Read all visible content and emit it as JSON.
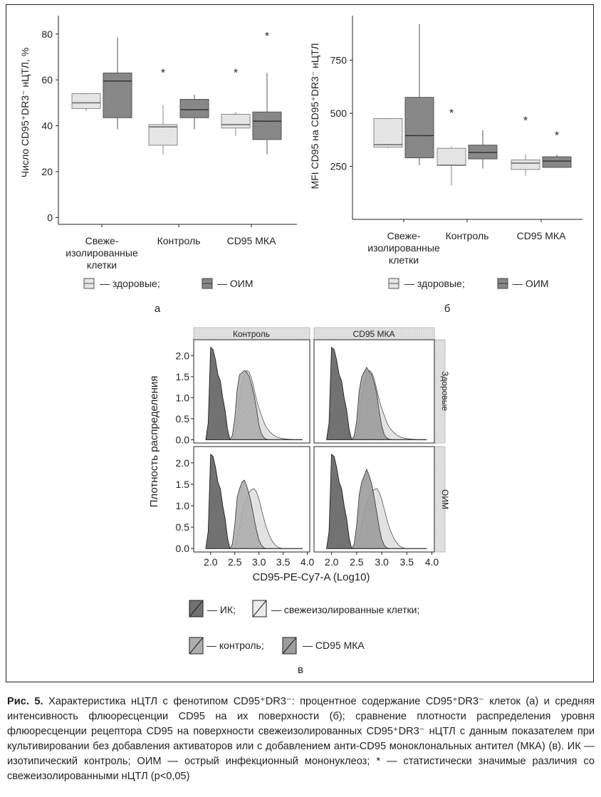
{
  "chart_data": [
    {
      "type": "boxplot",
      "panel_letter": "а",
      "ylabel": "Число CD95⁺DR3⁻ нЦТЛ, %",
      "ylim": [
        -3,
        88
      ],
      "yticks": [
        0,
        20,
        40,
        60,
        80
      ],
      "categories": [
        "Свеже-\nизолированные\nклетки",
        "Контроль",
        "CD95 МКА"
      ],
      "series": [
        {
          "name": "здоровые",
          "boxes": [
            {
              "min": 46.5,
              "q1": 47.5,
              "median": 50,
              "q3": 54,
              "max": 54
            },
            {
              "min": 27.5,
              "q1": 31.5,
              "median": 39.5,
              "q3": 40.5,
              "max": 49
            },
            {
              "min": 35.5,
              "q1": 39,
              "median": 40.5,
              "q3": 45,
              "max": 46
            }
          ]
        },
        {
          "name": "ОИМ",
          "boxes": [
            {
              "min": 38.5,
              "q1": 43.5,
              "median": 59.5,
              "q3": 63,
              "max": 78.5
            },
            {
              "min": 38.5,
              "q1": 43.5,
              "median": 47,
              "q3": 51.5,
              "max": 53.5
            },
            {
              "min": 27.5,
              "q1": 34,
              "median": 42,
              "q3": 46,
              "max": 63
            }
          ]
        }
      ],
      "annotations": [
        {
          "category": 1,
          "series": 0,
          "text": "*",
          "y": 64
        },
        {
          "category": 2,
          "series": 0,
          "text": "*",
          "y": 64
        },
        {
          "category": 2,
          "series": 1,
          "text": "*",
          "y": 80
        }
      ],
      "legend": [
        "— здоровые;",
        "— ОИМ"
      ]
    },
    {
      "type": "boxplot",
      "panel_letter": "б",
      "ylabel": "MFI CD95 на CD95⁺DR3⁻ нЦТЛ",
      "ylim": [
        0,
        960
      ],
      "yticks": [
        250,
        500,
        750
      ],
      "categories": [
        "Свеже-\nизолированные\nклетки",
        "Контроль",
        "CD95 МКА"
      ],
      "series": [
        {
          "name": "здоровые",
          "boxes": [
            {
              "min": 335,
              "q1": 340,
              "median": 352,
              "q3": 475,
              "max": 475
            },
            {
              "min": 160,
              "q1": 255,
              "median": 255,
              "q3": 335,
              "max": 345
            },
            {
              "min": 205,
              "q1": 235,
              "median": 265,
              "q3": 280,
              "max": 305
            }
          ]
        },
        {
          "name": "ОИМ",
          "boxes": [
            {
              "min": 255,
              "q1": 290,
              "median": 395,
              "q3": 575,
              "max": 920
            },
            {
              "min": 240,
              "q1": 285,
              "median": 315,
              "q3": 350,
              "max": 420
            },
            {
              "min": 245,
              "q1": 245,
              "median": 275,
              "q3": 295,
              "max": 305
            }
          ]
        }
      ],
      "annotations": [
        {
          "category": 1,
          "series": 0,
          "text": "*",
          "y": 510
        },
        {
          "category": 2,
          "series": 0,
          "text": "*",
          "y": 475
        },
        {
          "category": 2,
          "series": 1,
          "text": "*",
          "y": 405
        }
      ],
      "legend": [
        "— здоровые;",
        "— ОИМ"
      ]
    },
    {
      "type": "area",
      "panel_letter": "в",
      "xlabel": "CD95-PE-Cy7-A (Log10)",
      "ylabel": "Плотность распределения",
      "xlim": [
        1.65,
        4.05
      ],
      "ylim": [
        -0.08,
        2.38
      ],
      "xticks": [
        "2.0",
        "2.5",
        "3.0",
        "3.5",
        "4.0"
      ],
      "yticks": [
        "0.0",
        "0.5",
        "1.0",
        "1.5",
        "2.0"
      ],
      "columns": [
        "Контроль",
        "CD95 МКА"
      ],
      "rows": [
        "Здоровые",
        "ОИМ"
      ],
      "x": [
        1.9,
        1.95,
        2.0,
        2.05,
        2.1,
        2.15,
        2.2,
        2.25,
        2.3,
        2.35,
        2.4,
        2.45,
        2.5,
        2.55,
        2.6,
        2.65,
        2.7,
        2.75,
        2.8,
        2.85,
        2.9,
        2.95,
        3.0,
        3.05,
        3.1,
        3.15,
        3.2,
        3.25,
        3.3,
        3.35,
        3.4,
        3.45,
        3.5,
        3.55,
        3.6,
        3.65,
        3.7,
        3.75,
        3.8,
        3.85,
        3.9
      ],
      "series": [
        {
          "name": "ИК",
          "values": [
            0.0,
            0.4,
            2.2,
            2.15,
            1.9,
            1.55,
            1.4,
            1.0,
            0.7,
            0.25,
            0.0,
            0,
            0,
            0,
            0,
            0,
            0,
            0,
            0,
            0,
            0,
            0,
            0,
            0,
            0,
            0,
            0,
            0,
            0,
            0,
            0,
            0,
            0,
            0,
            0,
            0,
            0,
            0,
            0,
            0,
            0
          ]
        },
        {
          "name": "свежеизолированные клетки",
          "values": [
            0,
            0,
            0,
            0,
            0,
            0,
            0,
            0,
            0,
            0,
            0,
            0.02,
            0.1,
            0.4,
            0.95,
            1.35,
            1.58,
            1.65,
            1.6,
            1.45,
            1.2,
            0.95,
            0.75,
            0.58,
            0.42,
            0.3,
            0.22,
            0.16,
            0.11,
            0.08,
            0.05,
            0.035,
            0.025,
            0.018,
            0.012,
            0.008,
            0.005,
            0.003,
            0.002,
            0.001,
            0.0
          ]
        },
        {
          "name": "контроль",
          "values": [
            0,
            0,
            0,
            0,
            0,
            0,
            0,
            0,
            0,
            0,
            0,
            0.1,
            0.5,
            1.2,
            1.55,
            1.6,
            1.65,
            1.6,
            1.5,
            1.3,
            1.05,
            0.72,
            0.35,
            0.15,
            0.05,
            0.01,
            0.0,
            0,
            0,
            0,
            0,
            0,
            0,
            0,
            0,
            0,
            0,
            0,
            0,
            0,
            0
          ]
        },
        {
          "name": "CD95 МКА",
          "values": [
            0,
            0,
            0,
            0,
            0,
            0,
            0,
            0,
            0,
            0,
            0,
            0.08,
            0.45,
            1.15,
            1.5,
            1.62,
            1.72,
            1.62,
            1.55,
            1.35,
            1.1,
            0.68,
            0.32,
            0.12,
            0.04,
            0.01,
            0.0,
            0,
            0,
            0,
            0,
            0,
            0,
            0,
            0,
            0,
            0,
            0,
            0,
            0,
            0
          ]
        },
        {
          "name": "ОИМ свежеизолированные клетки",
          "values": [
            0,
            0,
            0,
            0,
            0,
            0,
            0,
            0,
            0,
            0,
            0,
            0,
            0.05,
            0.25,
            0.55,
            0.85,
            1.05,
            1.2,
            1.32,
            1.38,
            1.4,
            1.32,
            1.15,
            0.92,
            0.7,
            0.5,
            0.35,
            0.22,
            0.13,
            0.07,
            0.03,
            0.01,
            0.0,
            0,
            0,
            0,
            0,
            0,
            0,
            0,
            0
          ]
        },
        {
          "name": "ОИМ контроль",
          "values": [
            0,
            0,
            0,
            0,
            0,
            0,
            0,
            0,
            0,
            0,
            0,
            0.1,
            0.55,
            1.2,
            1.4,
            1.55,
            1.6,
            1.45,
            1.25,
            1.0,
            0.7,
            0.42,
            0.2,
            0.08,
            0.02,
            0.0,
            0,
            0,
            0,
            0,
            0,
            0,
            0,
            0,
            0,
            0,
            0,
            0,
            0,
            0,
            0
          ]
        },
        {
          "name": "ОИМ CD95 МКА",
          "values": [
            0,
            0,
            0,
            0,
            0,
            0,
            0,
            0,
            0,
            0,
            0,
            0.1,
            0.55,
            1.25,
            1.55,
            1.7,
            1.85,
            1.7,
            1.5,
            1.2,
            0.85,
            0.5,
            0.22,
            0.08,
            0.02,
            0.0,
            0,
            0,
            0,
            0,
            0,
            0,
            0,
            0,
            0,
            0,
            0,
            0,
            0,
            0,
            0
          ]
        }
      ],
      "legend": [
        "— ИК;",
        "— свежеизолированные клетки;",
        "— контроль;",
        "— CD95 МКА"
      ]
    }
  ],
  "caption": {
    "label": "Рис. 5.",
    "text": " Характеристика нЦТЛ с фенотипом CD95⁺DR3⁻: процентное содержание CD95⁺DR3⁻ клеток (а) и средняя интенсивность флюоресценции CD95 на их поверхности (б); сравнение плотности распределения уровня флюоресценции рецептора CD95 на поверхности свежеизолированных CD95⁺DR3⁻ нЦТЛ с данным показателем при культивировании без добавления активаторов или с добавлением анти-CD95 моноклональных антител (МКА) (в). ИК — изотипический контроль; ОИМ — острый инфекционный мононуклеоз; * — статистически значимые различия со свежеизолированными нЦТЛ (p<0,05)"
  },
  "colors": {
    "healthy_fill": "#ececec",
    "oim_fill": "#8c8c8c",
    "ik_fill": "#7a7a7a",
    "fresh_fill": "#e2e2e2",
    "control_fill": "#b4b4b4",
    "mka_fill": "#a2a2a2",
    "strip": "#dedede"
  }
}
